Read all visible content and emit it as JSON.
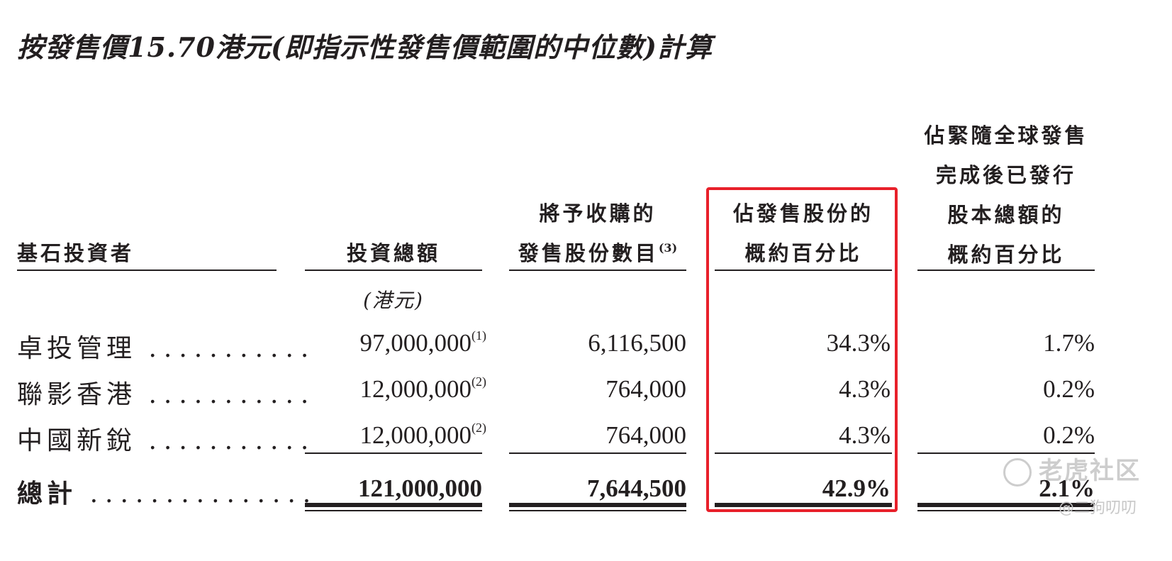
{
  "title": "按發售價15.70港元(即指示性發售價範圍的中位數)計算",
  "headers": {
    "investor": "基石投資者",
    "amount": "投資總額",
    "shares_line1": "將予收購的",
    "shares_line2": "發售股份數目",
    "shares_note": "(3)",
    "pct_offer_line1": "佔發售股份的",
    "pct_offer_line2": "概約百分比",
    "pct_total_line1": "佔緊隨全球發售",
    "pct_total_line2": "完成後已發行",
    "pct_total_line3": "股本總額的",
    "pct_total_line4": "概約百分比"
  },
  "unit": "(港元)",
  "rows": [
    {
      "investor": "卓投管理",
      "dots": "...........",
      "amount": "97,000,000",
      "note": "(1)",
      "shares": "6,116,500",
      "pct_offer": "34.3%",
      "pct_total": "1.7%"
    },
    {
      "investor": "聯影香港",
      "dots": "...........",
      "amount": "12,000,000",
      "note": "(2)",
      "shares": "764,000",
      "pct_offer": "4.3%",
      "pct_total": "0.2%"
    },
    {
      "investor": "中國新銳",
      "dots": "...........",
      "amount": "12,000,000",
      "note": "(2)",
      "shares": "764,000",
      "pct_offer": "4.3%",
      "pct_total": "0.2%"
    }
  ],
  "total": {
    "label": "總計",
    "dots": "...............",
    "amount": "121,000,000",
    "shares": "7,644,500",
    "pct_offer": "42.9%",
    "pct_total": "2.1%"
  },
  "watermark": {
    "brand": "老虎社区",
    "handle": "@二狗叨叨"
  },
  "colors": {
    "text": "#231f20",
    "highlight": "#e8202a",
    "watermark": "#c8c8c8"
  }
}
